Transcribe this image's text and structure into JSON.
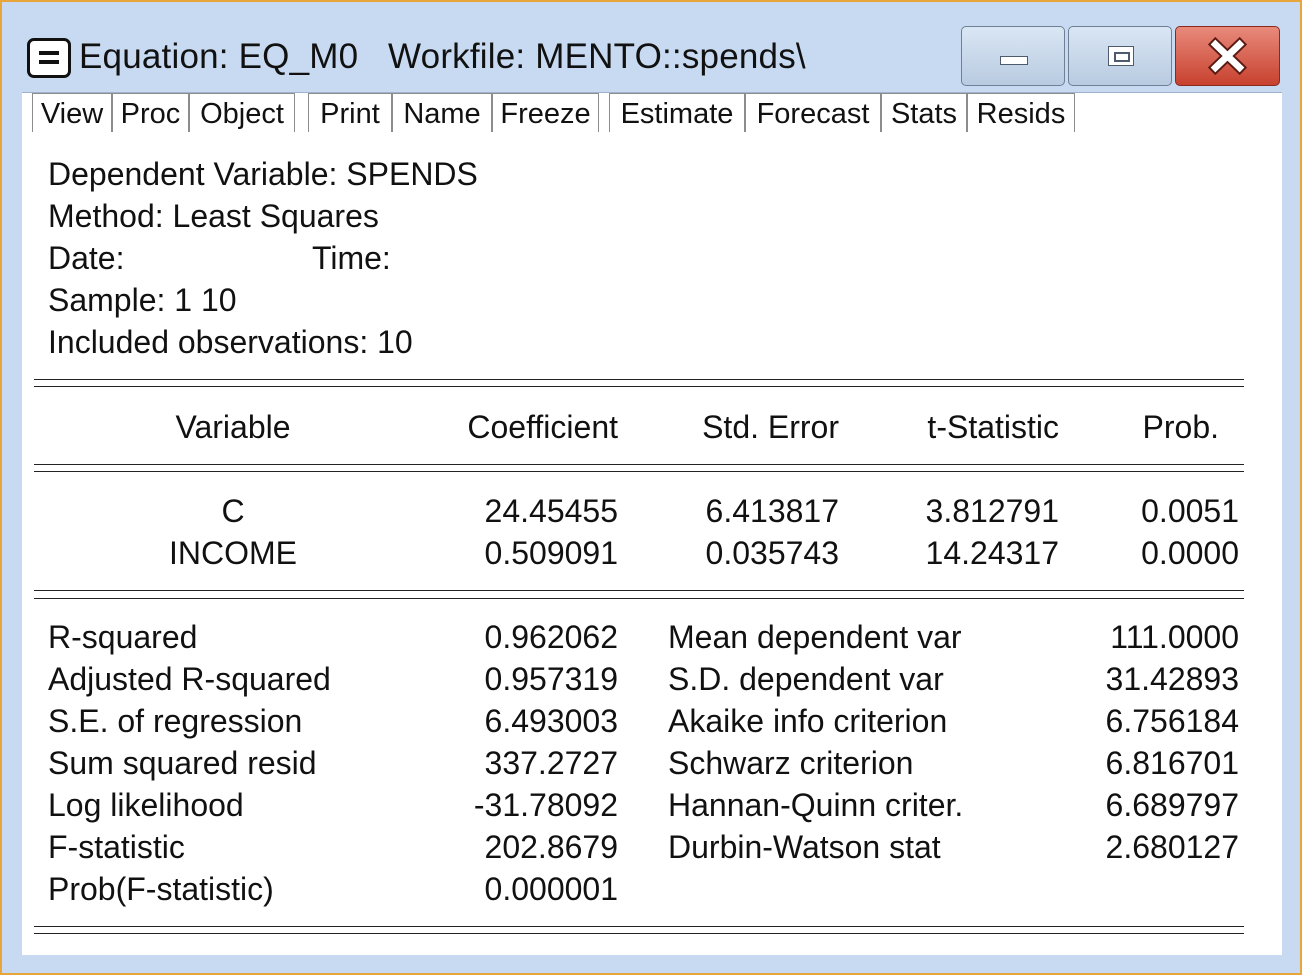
{
  "window": {
    "title": "Equation: EQ_M0   Workfile: MENTO::spends\\"
  },
  "menu": [
    {
      "label": "View"
    },
    {
      "label": "Proc"
    },
    {
      "label": "Object"
    },
    {
      "label": "Print"
    },
    {
      "label": "Name"
    },
    {
      "label": "Freeze"
    },
    {
      "label": "Estimate"
    },
    {
      "label": "Forecast"
    },
    {
      "label": "Stats"
    },
    {
      "label": "Resids"
    }
  ],
  "header": {
    "dependent": "Dependent Variable: SPENDS",
    "method": "Method: Least Squares",
    "date": "Date:",
    "time": "Time:",
    "sample": "Sample: 1 10",
    "observations": "Included observations: 10"
  },
  "columns": [
    "Variable",
    "Coefficient",
    "Std. Error",
    "t-Statistic",
    "Prob."
  ],
  "coefficients": [
    {
      "variable": "C",
      "coefficient": "24.45455",
      "std_error": "6.413817",
      "t_stat": "3.812791",
      "prob": "0.0051"
    },
    {
      "variable": "INCOME",
      "coefficient": "0.509091",
      "std_error": "0.035743",
      "t_stat": "14.24317",
      "prob": "0.0000"
    }
  ],
  "stats_left": [
    {
      "label": "R-squared",
      "value": "0.962062"
    },
    {
      "label": "Adjusted R-squared",
      "value": "0.957319"
    },
    {
      "label": "S.E. of regression",
      "value": "6.493003"
    },
    {
      "label": "Sum squared resid",
      "value": "337.2727"
    },
    {
      "label": "Log likelihood",
      "value": "-31.78092"
    },
    {
      "label": "F-statistic",
      "value": "202.8679"
    },
    {
      "label": "Prob(F-statistic)",
      "value": "0.000001"
    }
  ],
  "stats_right": [
    {
      "label": "Mean dependent var",
      "value": "111.0000"
    },
    {
      "label": "S.D. dependent var",
      "value": "31.42893"
    },
    {
      "label": "Akaike info criterion",
      "value": "6.756184"
    },
    {
      "label": "Schwarz criterion",
      "value": "6.816701"
    },
    {
      "label": "Hannan-Quinn criter.",
      "value": "6.689797"
    },
    {
      "label": "Durbin-Watson stat",
      "value": "2.680127"
    }
  ],
  "colors": {
    "window_frame": "#e8a53a",
    "title_area": "#c7daf1",
    "close_button": "#c8412f"
  }
}
